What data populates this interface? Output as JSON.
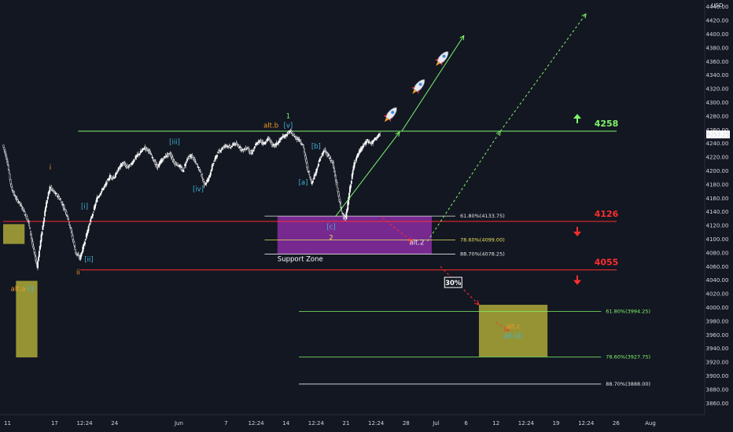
{
  "colors": {
    "background": "#131722",
    "axis_text": "#d1d4dc",
    "candle": "#ffffff",
    "green": "#7ff56a",
    "red": "#ff2d2d",
    "purple": "#9b30b5",
    "yellow_box": "#b7b33a",
    "wave_cyan": "#3fb7d6",
    "wave_orange": "#f59a23",
    "fib_white": "#e5e5e5",
    "fib_yellow": "#e5e056"
  },
  "chart_data": {
    "type": "candlestick",
    "ylim": [
      3850,
      4450
    ],
    "currency_label": "USD",
    "price_ticks": [
      "4440.00",
      "4420.00",
      "4400.00",
      "4380.00",
      "4360.00",
      "4340.00",
      "4320.00",
      "4300.00",
      "4280.00",
      "4260.00",
      "4240.00",
      "4220.00",
      "4200.00",
      "4180.00",
      "4160.00",
      "4140.00",
      "4120.00",
      "4100.00",
      "4080.00",
      "4060.00",
      "4040.00",
      "4020.00",
      "4000.00",
      "3980.00",
      "3960.00",
      "3940.00",
      "3920.00",
      "3900.00",
      "3880.00",
      "3860.00"
    ],
    "price_tick_values": [
      4440,
      4420,
      4400,
      4380,
      4360,
      4340,
      4320,
      4300,
      4280,
      4260,
      4240,
      4220,
      4200,
      4180,
      4160,
      4140,
      4120,
      4100,
      4080,
      4060,
      4040,
      4020,
      4000,
      3980,
      3960,
      3940,
      3920,
      3900,
      3880,
      3860
    ],
    "time_ticks": [
      "11",
      "17",
      "12:24",
      "24",
      "Jun",
      "7",
      "12:24",
      "14",
      "12:24",
      "21",
      "12:24",
      "28",
      "Jul",
      "6",
      "12",
      "12:24",
      "19",
      "12:24",
      "26",
      "Aug"
    ],
    "time_tick_index": [
      1,
      12,
      19,
      26,
      41,
      52,
      59,
      66,
      73,
      80,
      87,
      94,
      101,
      108,
      115,
      122,
      129,
      136,
      143,
      151
    ],
    "last_price": "4253.25",
    "last_price_value": 4253.25,
    "price_path": [
      [
        0,
        4238
      ],
      [
        1,
        4215
      ],
      [
        2,
        4175
      ],
      [
        3,
        4160
      ],
      [
        4,
        4152
      ],
      [
        5,
        4140
      ],
      [
        6,
        4125
      ],
      [
        7,
        4090
      ],
      [
        8,
        4060
      ],
      [
        9,
        4105
      ],
      [
        10,
        4148
      ],
      [
        11,
        4176
      ],
      [
        12,
        4168
      ],
      [
        13,
        4162
      ],
      [
        14,
        4150
      ],
      [
        15,
        4135
      ],
      [
        16,
        4110
      ],
      [
        17,
        4080
      ],
      [
        18,
        4072
      ],
      [
        19,
        4094
      ],
      [
        20,
        4118
      ],
      [
        21,
        4138
      ],
      [
        22,
        4160
      ],
      [
        23,
        4170
      ],
      [
        24,
        4180
      ],
      [
        25,
        4192
      ],
      [
        26,
        4190
      ],
      [
        27,
        4203
      ],
      [
        28,
        4212
      ],
      [
        29,
        4205
      ],
      [
        30,
        4210
      ],
      [
        31,
        4220
      ],
      [
        32,
        4226
      ],
      [
        33,
        4234
      ],
      [
        34,
        4230
      ],
      [
        35,
        4218
      ],
      [
        36,
        4205
      ],
      [
        37,
        4215
      ],
      [
        38,
        4222
      ],
      [
        39,
        4225
      ],
      [
        40,
        4212
      ],
      [
        41,
        4208
      ],
      [
        42,
        4200
      ],
      [
        43,
        4218
      ],
      [
        44,
        4222
      ],
      [
        45,
        4212
      ],
      [
        46,
        4200
      ],
      [
        47,
        4180
      ],
      [
        48,
        4188
      ],
      [
        49,
        4210
      ],
      [
        50,
        4225
      ],
      [
        51,
        4232
      ],
      [
        52,
        4238
      ],
      [
        53,
        4234
      ],
      [
        54,
        4240
      ],
      [
        55,
        4236
      ],
      [
        56,
        4230
      ],
      [
        57,
        4234
      ],
      [
        58,
        4225
      ],
      [
        59,
        4238
      ],
      [
        60,
        4244
      ],
      [
        61,
        4240
      ],
      [
        62,
        4248
      ],
      [
        63,
        4236
      ],
      [
        64,
        4240
      ],
      [
        65,
        4248
      ],
      [
        66,
        4252
      ],
      [
        67,
        4258
      ],
      [
        68,
        4250
      ],
      [
        69,
        4246
      ],
      [
        70,
        4238
      ],
      [
        71,
        4205
      ],
      [
        72,
        4182
      ],
      [
        73,
        4198
      ],
      [
        74,
        4218
      ],
      [
        75,
        4230
      ],
      [
        76,
        4222
      ],
      [
        77,
        4210
      ],
      [
        78,
        4175
      ],
      [
        79,
        4140
      ],
      [
        80,
        4130
      ],
      [
        81,
        4175
      ],
      [
        82,
        4212
      ],
      [
        83,
        4226
      ],
      [
        84,
        4236
      ],
      [
        85,
        4244
      ],
      [
        86,
        4240
      ],
      [
        87,
        4248
      ],
      [
        88,
        4253
      ]
    ],
    "levels": [
      {
        "label": "4258",
        "value": 4258,
        "color": "green",
        "arrow": "up"
      },
      {
        "label": "4126",
        "value": 4126,
        "color": "red",
        "arrow": "down"
      },
      {
        "label": "4055",
        "value": 4055,
        "color": "red",
        "arrow": "down"
      }
    ],
    "support_zone": {
      "label": "Support Zone",
      "y_range": [
        4078.25,
        4133.75
      ],
      "x_range": [
        64,
        100
      ]
    },
    "target_zone": {
      "y_range": [
        3927.75,
        4004
      ],
      "x_range": [
        111,
        127
      ]
    },
    "left_zones": [
      {
        "y_range": [
          4093,
          4122
        ],
        "x_range": [
          0,
          5
        ]
      },
      {
        "y_range": [
          3927,
          4039
        ],
        "x_range": [
          3,
          8
        ]
      }
    ],
    "fib_levels": [
      {
        "label": "61.80%(4133.75)",
        "value": 4133.75,
        "color": "fib_white",
        "x_range": [
          61,
          100
        ]
      },
      {
        "label": "78.60%(4099.00)",
        "value": 4099.0,
        "color": "fib_yellow",
        "x_range": [
          61,
          100
        ]
      },
      {
        "label": "88.70%(4078.25)",
        "value": 4078.25,
        "color": "fib_white",
        "x_range": [
          61,
          100
        ]
      },
      {
        "label": "61.80%(3994.25)",
        "value": 3994.25,
        "color": "green",
        "x_range": [
          69,
          134
        ]
      },
      {
        "label": "78.60%(3927.75)",
        "value": 3927.75,
        "color": "green",
        "x_range": [
          69,
          134
        ]
      },
      {
        "label": "88.70%(3888.00)",
        "value": 3888.0,
        "color": "fib_white",
        "x_range": [
          69,
          134
        ]
      }
    ],
    "wave_labels": [
      {
        "text": "i",
        "x": 11,
        "y": 4202,
        "color": "wave_orange"
      },
      {
        "text": "ii",
        "x": 17.5,
        "y": 4048,
        "color": "wave_orange"
      },
      {
        "text": "alt.a",
        "x": 3.5,
        "y": 4024,
        "color": "wave_orange"
      },
      {
        "text": "(i)",
        "x": 6.3,
        "y": 4024,
        "color": "wave_cyan"
      },
      {
        "text": "[i]",
        "x": 19,
        "y": 4145,
        "color": "wave_cyan"
      },
      {
        "text": "[ii]",
        "x": 20,
        "y": 4067,
        "color": "wave_cyan"
      },
      {
        "text": "[iii]",
        "x": 40,
        "y": 4239,
        "color": "wave_cyan"
      },
      {
        "text": "[iv]",
        "x": 45.5,
        "y": 4170,
        "color": "wave_cyan"
      },
      {
        "text": "alt.b",
        "x": 62.5,
        "y": 4263,
        "color": "wave_orange"
      },
      {
        "text": "[v]",
        "x": 66.5,
        "y": 4263,
        "color": "wave_cyan"
      },
      {
        "text": "1",
        "x": 66.5,
        "y": 4277,
        "color": "green"
      },
      {
        "text": "[a]",
        "x": 70,
        "y": 4180,
        "color": "wave_cyan"
      },
      {
        "text": "[b]",
        "x": 73,
        "y": 4233,
        "color": "wave_cyan"
      },
      {
        "text": "[c]",
        "x": 76.5,
        "y": 4115,
        "color": "wave_cyan"
      },
      {
        "text": "2",
        "x": 76.5,
        "y": 4099,
        "color": "fib_yellow"
      },
      {
        "text": "alt.2",
        "x": 96.5,
        "y": 4092,
        "color": "fib_white"
      },
      {
        "text": "alt.c",
        "x": 119,
        "y": 3969,
        "color": "wave_orange"
      },
      {
        "text": "alt.(ii)",
        "x": 119,
        "y": 3955,
        "color": "wave_cyan"
      }
    ],
    "percent_badge": {
      "text": "30%",
      "x": 105,
      "y": 4035
    },
    "projections": [
      {
        "style": "solid",
        "color": "green",
        "points": [
          [
            77.5,
            4133
          ],
          [
            92.5,
            4257
          ]
        ]
      },
      {
        "style": "solid",
        "color": "green",
        "points": [
          [
            93,
            4258
          ],
          [
            107.5,
            4398
          ]
        ]
      },
      {
        "style": "dashed",
        "color": "green",
        "points": [
          [
            99,
            4097
          ],
          [
            116,
            4258
          ]
        ]
      },
      {
        "style": "dashed",
        "color": "green",
        "points": [
          [
            116,
            4258
          ],
          [
            136,
            4430
          ]
        ]
      },
      {
        "style": "dashed",
        "color": "red",
        "points": [
          [
            88.5,
            4131
          ],
          [
            95.5,
            4096
          ]
        ]
      },
      {
        "style": "dashed",
        "color": "red",
        "points": [
          [
            102,
            4060
          ],
          [
            111,
            4004
          ]
        ]
      },
      {
        "style": "dashed",
        "color": "red",
        "points": [
          [
            115,
            3978
          ],
          [
            118,
            3966
          ]
        ]
      }
    ],
    "rockets": [
      {
        "x": 90.5,
        "y": 4283
      },
      {
        "x": 97,
        "y": 4324
      },
      {
        "x": 102.5,
        "y": 4365
      }
    ]
  }
}
